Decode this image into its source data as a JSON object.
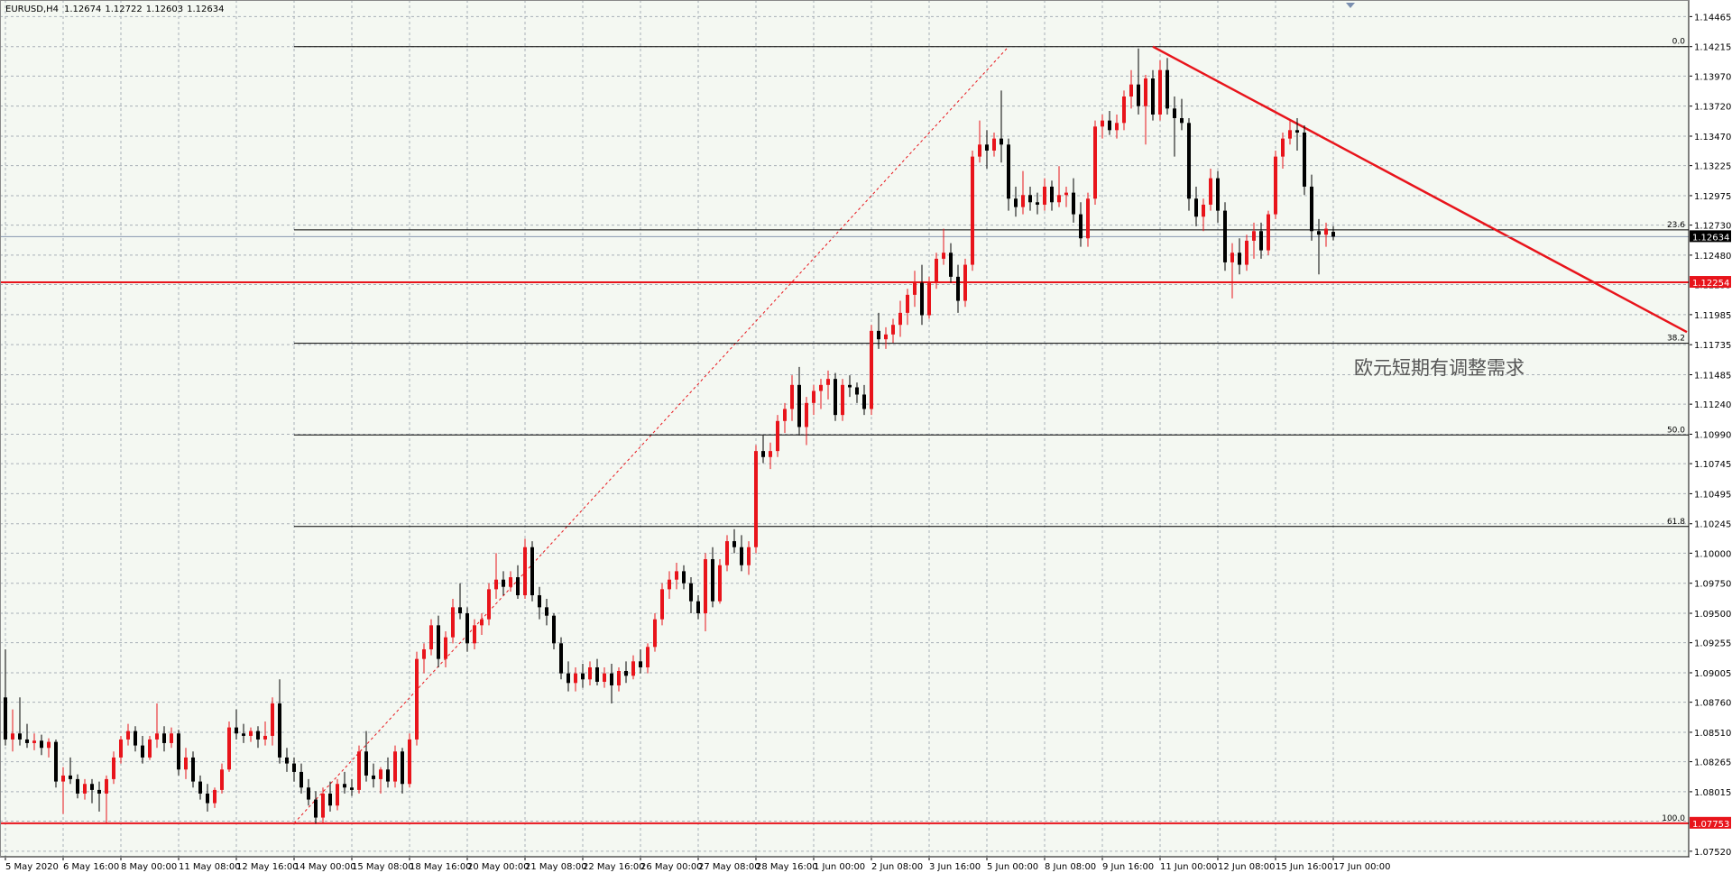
{
  "chart_data": {
    "type": "candlestick",
    "title": "EURUSD,H4",
    "annotation": "欧元短期有调整需求",
    "up_color": "#e8141b",
    "down_color": "#000000",
    "grid": true,
    "ylim": [
      1.07474,
      1.14603
    ],
    "yticks": [
      1.14465,
      1.14215,
      {
        "value": 1.1397,
        "label": "1.13970"
      },
      {
        "value": 1.1372,
        "label": "1.13720"
      },
      {
        "value": 1.1347,
        "label": "1.13470"
      },
      1.13225,
      1.12975,
      {
        "value": 1.1273,
        "label": "1.12730"
      },
      {
        "value": 1.1248,
        "label": "1.12480"
      },
      1.12235,
      1.11985,
      1.11735,
      1.11485,
      {
        "value": 1.1124,
        "label": "1.11240"
      },
      {
        "value": 1.1099,
        "label": "1.10990"
      },
      1.10745,
      1.10495,
      1.10245,
      {
        "value": 1.1,
        "label": "1.10000"
      },
      {
        "value": 1.0975,
        "label": "1.09750"
      },
      {
        "value": 1.095,
        "label": "1.09500"
      },
      1.09255,
      1.09005,
      {
        "value": 1.0876,
        "label": "1.08760"
      },
      {
        "value": 1.0851,
        "label": "1.08510"
      },
      1.08265,
      1.08015,
      {
        "value": 1.0777,
        "label": "1.07770"
      },
      {
        "value": 1.0752,
        "label": "1.07520"
      }
    ],
    "horizontal_lines": [
      {
        "value": 1.12254,
        "color": "#e8141b"
      },
      {
        "value": 1.07753,
        "color": "#e8141b"
      }
    ],
    "fibonacci": {
      "color": "#000000",
      "ray_color": "#e8141b",
      "from": [
        40,
        1.07753
      ],
      "to": [
        139,
        1.14215
      ],
      "levels": [
        {
          "label": "0.0",
          "value": 1.14215
        },
        {
          "label": "23.6",
          "value": 1.1269
        },
        {
          "label": "38.2",
          "value": 1.11747
        },
        {
          "label": "50.0",
          "value": 1.10984
        },
        {
          "label": "61.8",
          "value": 1.10222
        },
        {
          "label": "100.0",
          "value": 1.07753
        }
      ]
    },
    "trendline": {
      "color": "#e8141b",
      "from": [
        159,
        1.14215
      ],
      "to": [
        233,
        1.1184
      ]
    },
    "categories": [
      "5 May 2020",
      null,
      null,
      null,
      null,
      null,
      null,
      null,
      "6 May 16:00",
      null,
      null,
      null,
      null,
      null,
      null,
      null,
      "8 May 00:00",
      null,
      null,
      null,
      null,
      null,
      null,
      null,
      "11 May 08:00",
      null,
      null,
      null,
      null,
      null,
      null,
      null,
      "12 May 16:00",
      null,
      null,
      null,
      null,
      null,
      null,
      null,
      "14 May 00:00",
      null,
      null,
      null,
      null,
      null,
      null,
      null,
      "15 May 08:00",
      null,
      null,
      null,
      null,
      null,
      null,
      null,
      "18 May 16:00",
      null,
      null,
      null,
      null,
      null,
      null,
      null,
      "20 May 00:00",
      null,
      null,
      null,
      null,
      null,
      null,
      null,
      "21 May 08:00",
      null,
      null,
      null,
      null,
      null,
      null,
      null,
      "22 May 16:00",
      null,
      null,
      null,
      null,
      null,
      null,
      null,
      "26 May 00:00",
      null,
      null,
      null,
      null,
      null,
      null,
      null,
      "27 May 08:00",
      null,
      null,
      null,
      null,
      null,
      null,
      null,
      "28 May 16:00",
      null,
      null,
      null,
      null,
      null,
      null,
      null,
      "1 Jun 00:00",
      null,
      null,
      null,
      null,
      null,
      null,
      null,
      "2 Jun 08:00",
      null,
      null,
      null,
      null,
      null,
      null,
      null,
      "3 Jun 16:00",
      null,
      null,
      null,
      null,
      null,
      null,
      null,
      "5 Jun 00:00",
      null,
      null,
      null,
      null,
      null,
      null,
      null,
      "8 Jun 08:00",
      null,
      null,
      null,
      null,
      null,
      null,
      null,
      "9 Jun 16:00",
      null,
      null,
      null,
      null,
      null,
      null,
      null,
      "11 Jun 00:00",
      null,
      null,
      null,
      null,
      null,
      null,
      null,
      "12 Jun 08:00",
      null,
      null,
      null,
      null,
      null,
      null,
      null,
      "15 Jun 16:00",
      null,
      null,
      null,
      null,
      null,
      null,
      null,
      "17 Jun 00:00"
    ],
    "candles": [
      [
        1.088,
        1.092,
        1.084,
        1.0845
      ],
      [
        1.0845,
        1.087,
        1.0835,
        1.085
      ],
      [
        1.085,
        1.088,
        1.084,
        1.0845
      ],
      [
        1.0845,
        1.0858,
        1.0838,
        1.0842
      ],
      [
        1.0842,
        1.085,
        1.0836,
        1.0844
      ],
      [
        1.0844,
        1.0849,
        1.0832,
        1.0838
      ],
      [
        1.0838,
        1.0846,
        1.083,
        1.0843
      ],
      [
        1.0843,
        1.0845,
        1.0805,
        1.081
      ],
      [
        1.081,
        1.0822,
        1.0783,
        1.0815
      ],
      [
        1.0815,
        1.083,
        1.0808,
        1.0812
      ],
      [
        1.0812,
        1.0816,
        1.0796,
        1.08
      ],
      [
        1.08,
        1.0812,
        1.0795,
        1.0808
      ],
      [
        1.0808,
        1.0812,
        1.0792,
        1.0803
      ],
      [
        1.0803,
        1.081,
        1.0785,
        1.08
      ],
      [
        1.08,
        1.0815,
        1.0775,
        1.0812
      ],
      [
        1.0812,
        1.0835,
        1.0808,
        1.083
      ],
      [
        1.083,
        1.0848,
        1.0825,
        1.0845
      ],
      [
        1.0845,
        1.0858,
        1.084,
        1.0852
      ],
      [
        1.0852,
        1.0856,
        1.0835,
        1.084
      ],
      [
        1.084,
        1.0848,
        1.0825,
        1.083
      ],
      [
        1.083,
        1.0848,
        1.0828,
        1.0845
      ],
      [
        1.0845,
        1.0875,
        1.0838,
        1.085
      ],
      [
        1.085,
        1.0856,
        1.0835,
        1.0842
      ],
      [
        1.0842,
        1.0855,
        1.0838,
        1.085
      ],
      [
        1.085,
        1.0853,
        1.0815,
        1.082
      ],
      [
        1.082,
        1.0838,
        1.0812,
        1.083
      ],
      [
        1.083,
        1.0835,
        1.0805,
        1.081
      ],
      [
        1.081,
        1.0815,
        1.0795,
        1.08
      ],
      [
        1.08,
        1.0808,
        1.0785,
        1.0792
      ],
      [
        1.0792,
        1.0805,
        1.0788,
        1.0803
      ],
      [
        1.0803,
        1.0825,
        1.08,
        1.082
      ],
      [
        1.082,
        1.086,
        1.0818,
        1.0855
      ],
      [
        1.0855,
        1.087,
        1.0845,
        1.085
      ],
      [
        1.085,
        1.0858,
        1.0842,
        1.0848
      ],
      [
        1.0848,
        1.0855,
        1.0843,
        1.0852
      ],
      [
        1.0852,
        1.0856,
        1.0838,
        1.0845
      ],
      [
        1.0845,
        1.086,
        1.084,
        1.0848
      ],
      [
        1.0848,
        1.088,
        1.084,
        1.0875
      ],
      [
        1.0875,
        1.0895,
        1.0825,
        1.083
      ],
      [
        1.083,
        1.0838,
        1.0818,
        1.0825
      ],
      [
        1.0825,
        1.083,
        1.081,
        1.0818
      ],
      [
        1.0818,
        1.0825,
        1.08,
        1.0805
      ],
      [
        1.0805,
        1.0812,
        1.079,
        1.0795
      ],
      [
        1.0795,
        1.0802,
        1.0775,
        1.078
      ],
      [
        1.078,
        1.0805,
        1.0776,
        1.08
      ],
      [
        1.08,
        1.081,
        1.0785,
        1.079
      ],
      [
        1.079,
        1.0812,
        1.0786,
        1.0808
      ],
      [
        1.0808,
        1.0818,
        1.08,
        1.0805
      ],
      [
        1.0805,
        1.0812,
        1.0798,
        1.0803
      ],
      [
        1.0803,
        1.084,
        1.08,
        1.0835
      ],
      [
        1.0835,
        1.0852,
        1.081,
        1.0815
      ],
      [
        1.0815,
        1.0825,
        1.0805,
        1.0812
      ],
      [
        1.0812,
        1.0822,
        1.08,
        1.082
      ],
      [
        1.082,
        1.083,
        1.0805,
        1.081
      ],
      [
        1.081,
        1.084,
        1.0805,
        1.0835
      ],
      [
        1.0835,
        1.0838,
        1.08,
        1.0808
      ],
      [
        1.0808,
        1.085,
        1.0805,
        1.0845
      ],
      [
        1.0845,
        1.0918,
        1.084,
        1.0912
      ],
      [
        1.0912,
        1.0925,
        1.09,
        1.092
      ],
      [
        1.092,
        1.0945,
        1.0915,
        1.094
      ],
      [
        1.094,
        1.0948,
        1.0905,
        1.0912
      ],
      [
        1.0912,
        1.0935,
        1.0905,
        1.093
      ],
      [
        1.093,
        1.0962,
        1.0925,
        1.0955
      ],
      [
        1.0955,
        1.0975,
        1.0945,
        1.095
      ],
      [
        1.095,
        1.0955,
        1.0918,
        1.0925
      ],
      [
        1.0925,
        1.0945,
        1.092,
        1.094
      ],
      [
        1.094,
        1.095,
        1.0932,
        1.0945
      ],
      [
        1.0945,
        1.0975,
        1.094,
        1.097
      ],
      [
        1.097,
        1.1,
        1.0962,
        1.0978
      ],
      [
        1.0978,
        1.0985,
        1.0965,
        1.0972
      ],
      [
        1.0972,
        1.0985,
        1.0968,
        1.098
      ],
      [
        1.098,
        1.099,
        1.0962,
        1.0965
      ],
      [
        1.0965,
        1.1012,
        1.0962,
        1.1005
      ],
      [
        1.1005,
        1.101,
        1.096,
        1.0965
      ],
      [
        1.0965,
        1.0972,
        1.0945,
        1.0955
      ],
      [
        1.0955,
        1.0962,
        1.094,
        1.0948
      ],
      [
        1.0948,
        1.095,
        1.092,
        1.0925
      ],
      [
        1.0925,
        1.093,
        1.0895,
        1.09
      ],
      [
        1.09,
        1.091,
        1.0885,
        1.0892
      ],
      [
        1.0892,
        1.0905,
        1.0885,
        1.09
      ],
      [
        1.09,
        1.0908,
        1.0888,
        1.0895
      ],
      [
        1.0895,
        1.091,
        1.089,
        1.0905
      ],
      [
        1.0905,
        1.0912,
        1.089,
        1.0893
      ],
      [
        1.0893,
        1.0905,
        1.0888,
        1.09
      ],
      [
        1.09,
        1.0908,
        1.0875,
        1.089
      ],
      [
        1.089,
        1.0905,
        1.0885,
        1.0902
      ],
      [
        1.0902,
        1.091,
        1.0892,
        1.0898
      ],
      [
        1.0898,
        1.0915,
        1.0895,
        1.091
      ],
      [
        1.091,
        1.092,
        1.09,
        1.0905
      ],
      [
        1.0905,
        1.0925,
        1.09,
        1.0922
      ],
      [
        1.0922,
        1.095,
        1.0918,
        1.0945
      ],
      [
        1.0945,
        1.0975,
        1.094,
        1.097
      ],
      [
        1.097,
        1.0985,
        1.0962,
        1.0978
      ],
      [
        1.0978,
        1.0992,
        1.097,
        1.0985
      ],
      [
        1.0985,
        1.099,
        1.097,
        1.0975
      ],
      [
        1.0975,
        1.098,
        1.095,
        1.096
      ],
      [
        1.096,
        1.0965,
        1.0945,
        1.095
      ],
      [
        1.095,
        1.1,
        1.0935,
        1.0995
      ],
      [
        1.0995,
        1.1005,
        1.0955,
        1.096
      ],
      [
        1.096,
        1.0995,
        1.0958,
        1.099
      ],
      [
        1.099,
        1.1015,
        1.0985,
        1.101
      ],
      [
        1.101,
        1.102,
        1.1,
        1.1005
      ],
      [
        1.1005,
        1.1015,
        1.0985,
        1.099
      ],
      [
        1.099,
        1.101,
        1.0982,
        1.1005
      ],
      [
        1.1005,
        1.109,
        1.1,
        1.1085
      ],
      [
        1.1085,
        1.1098,
        1.1075,
        1.108
      ],
      [
        1.108,
        1.1092,
        1.107,
        1.1085
      ],
      [
        1.1085,
        1.1115,
        1.108,
        1.111
      ],
      [
        1.111,
        1.1125,
        1.11,
        1.112
      ],
      [
        1.112,
        1.1148,
        1.111,
        1.114
      ],
      [
        1.114,
        1.1155,
        1.1098,
        1.1105
      ],
      [
        1.1105,
        1.113,
        1.109,
        1.1125
      ],
      [
        1.1125,
        1.114,
        1.1115,
        1.1135
      ],
      [
        1.1135,
        1.1145,
        1.112,
        1.114
      ],
      [
        1.114,
        1.1152,
        1.1128,
        1.1145
      ],
      [
        1.1145,
        1.115,
        1.111,
        1.1115
      ],
      [
        1.1115,
        1.1145,
        1.111,
        1.114
      ],
      [
        1.114,
        1.1148,
        1.113,
        1.1138
      ],
      [
        1.1138,
        1.1142,
        1.1125,
        1.1132
      ],
      [
        1.1132,
        1.114,
        1.1115,
        1.112
      ],
      [
        1.112,
        1.119,
        1.1115,
        1.1185
      ],
      [
        1.1185,
        1.12,
        1.117,
        1.1178
      ],
      [
        1.1178,
        1.1188,
        1.117,
        1.1182
      ],
      [
        1.1182,
        1.1195,
        1.1175,
        1.119
      ],
      [
        1.119,
        1.121,
        1.118,
        1.12
      ],
      [
        1.12,
        1.122,
        1.119,
        1.1215
      ],
      [
        1.1215,
        1.1235,
        1.1205,
        1.1225
      ],
      [
        1.1225,
        1.124,
        1.119,
        1.1198
      ],
      [
        1.1198,
        1.123,
        1.1195,
        1.1225
      ],
      [
        1.1225,
        1.125,
        1.122,
        1.1245
      ],
      [
        1.1245,
        1.127,
        1.124,
        1.125
      ],
      [
        1.125,
        1.1258,
        1.1225,
        1.123
      ],
      [
        1.123,
        1.124,
        1.12,
        1.121
      ],
      [
        1.121,
        1.1245,
        1.1205,
        1.124
      ],
      [
        1.124,
        1.1335,
        1.1235,
        1.133
      ],
      [
        1.133,
        1.136,
        1.1325,
        1.134
      ],
      [
        1.134,
        1.1352,
        1.132,
        1.1335
      ],
      [
        1.1335,
        1.135,
        1.133,
        1.1345
      ],
      [
        1.1345,
        1.1385,
        1.1325,
        1.134
      ],
      [
        1.134,
        1.1345,
        1.1285,
        1.1295
      ],
      [
        1.1295,
        1.1305,
        1.128,
        1.1288
      ],
      [
        1.1288,
        1.1318,
        1.1282,
        1.1298
      ],
      [
        1.1298,
        1.1305,
        1.1285,
        1.1292
      ],
      [
        1.1292,
        1.13,
        1.1282,
        1.129
      ],
      [
        1.129,
        1.1312,
        1.1285,
        1.1305
      ],
      [
        1.1305,
        1.131,
        1.1285,
        1.1292
      ],
      [
        1.1292,
        1.1322,
        1.1288,
        1.1298
      ],
      [
        1.1298,
        1.1305,
        1.1288,
        1.13
      ],
      [
        1.13,
        1.1312,
        1.1275,
        1.1282
      ],
      [
        1.1282,
        1.1292,
        1.1255,
        1.1262
      ],
      [
        1.1262,
        1.13,
        1.1255,
        1.1295
      ],
      [
        1.1295,
        1.136,
        1.129,
        1.1355
      ],
      [
        1.1355,
        1.1365,
        1.1345,
        1.136
      ],
      [
        1.136,
        1.1368,
        1.1348,
        1.1352
      ],
      [
        1.1352,
        1.1365,
        1.1345,
        1.1358
      ],
      [
        1.1358,
        1.1385,
        1.1352,
        1.138
      ],
      [
        1.138,
        1.1402,
        1.137,
        1.139
      ],
      [
        1.139,
        1.142,
        1.1365,
        1.1372
      ],
      [
        1.1372,
        1.1398,
        1.134,
        1.1395
      ],
      [
        1.1395,
        1.1402,
        1.136,
        1.1365
      ],
      [
        1.1365,
        1.141,
        1.136,
        1.1402
      ],
      [
        1.1402,
        1.1412,
        1.1365,
        1.137
      ],
      [
        1.137,
        1.138,
        1.133,
        1.1362
      ],
      [
        1.1362,
        1.1378,
        1.1352,
        1.1358
      ],
      [
        1.1358,
        1.1362,
        1.1285,
        1.1295
      ],
      [
        1.1295,
        1.1305,
        1.1272,
        1.128
      ],
      [
        1.128,
        1.1295,
        1.1268,
        1.129
      ],
      [
        1.129,
        1.132,
        1.1285,
        1.1312
      ],
      [
        1.1312,
        1.1318,
        1.1275,
        1.1285
      ],
      [
        1.1285,
        1.1292,
        1.1235,
        1.1242
      ],
      [
        1.1242,
        1.1258,
        1.1212,
        1.125
      ],
      [
        1.125,
        1.1262,
        1.1232,
        1.124
      ],
      [
        1.124,
        1.1265,
        1.1235,
        1.126
      ],
      [
        1.126,
        1.1275,
        1.1245,
        1.1268
      ],
      [
        1.1268,
        1.1275,
        1.1245,
        1.1252
      ],
      [
        1.1252,
        1.1285,
        1.1248,
        1.1282
      ],
      [
        1.1282,
        1.1335,
        1.1278,
        1.133
      ],
      [
        1.133,
        1.135,
        1.132,
        1.1345
      ],
      [
        1.1345,
        1.136,
        1.134,
        1.1352
      ],
      [
        1.1352,
        1.1362,
        1.1335,
        1.135
      ],
      [
        1.135,
        1.1356,
        1.1298,
        1.1305
      ],
      [
        1.1305,
        1.1315,
        1.126,
        1.1268
      ],
      [
        1.1268,
        1.1278,
        1.1232,
        1.1265
      ],
      [
        1.1265,
        1.1275,
        1.1255,
        1.127
      ],
      [
        1.12674,
        1.12722,
        1.12603,
        1.12634
      ]
    ]
  }
}
